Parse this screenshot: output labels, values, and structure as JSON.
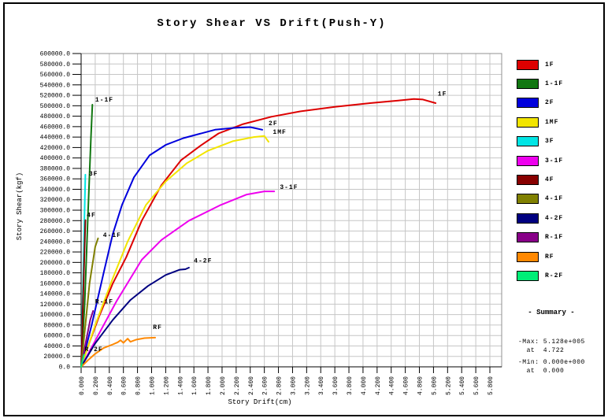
{
  "title": "Story Shear VS Drift(Push-Y)",
  "colors": {
    "grid": "#c6c6c6",
    "frame": "#909090",
    "axis": "#000000",
    "text": "#000000",
    "background": "#ffffff",
    "border": "#000000"
  },
  "summary": {
    "title": "- Summary -",
    "max_line": "-Max: 5.128e+005",
    "max_at_line": "  at  4.722",
    "min_line": "-Min: 0.000e+000",
    "min_at_line": "  at  0.000"
  },
  "chart_data": {
    "type": "line",
    "title": "Story Shear VS Drift(Push-Y)",
    "xlabel": "Story Drift(cm)",
    "ylabel": "Story Shear(kgf)",
    "xlim": [
      0,
      5.8
    ],
    "ylim": [
      0,
      600000
    ],
    "x_tick_step": 0.2,
    "y_tick_step": 20000,
    "grid": true,
    "legend_position": "right",
    "max_point": {
      "value": 512800,
      "at": 4.722
    },
    "min_point": {
      "value": 0,
      "at": 0
    },
    "series": [
      {
        "name": "1F",
        "color": "#dd0000",
        "label_at": [
          5.06,
          519000
        ],
        "points": [
          [
            0,
            0
          ],
          [
            0.1,
            40000
          ],
          [
            0.25,
            95000
          ],
          [
            0.45,
            160000
          ],
          [
            0.64,
            210000
          ],
          [
            0.86,
            280000
          ],
          [
            1.14,
            348000
          ],
          [
            1.42,
            396000
          ],
          [
            1.7,
            424000
          ],
          [
            1.95,
            447000
          ],
          [
            2.3,
            465000
          ],
          [
            2.7,
            479000
          ],
          [
            3.1,
            489000
          ],
          [
            3.6,
            498000
          ],
          [
            4.1,
            505000
          ],
          [
            4.5,
            510000
          ],
          [
            4.722,
            512800
          ],
          [
            4.85,
            512000
          ],
          [
            5.03,
            505000
          ]
        ]
      },
      {
        "name": "1-1F",
        "color": "#117711",
        "label_at": [
          0.2,
          508000
        ],
        "points": [
          [
            0,
            0
          ],
          [
            0.05,
            120000
          ],
          [
            0.1,
            300000
          ],
          [
            0.14,
            440000
          ],
          [
            0.16,
            502000
          ]
        ]
      },
      {
        "name": "2F",
        "color": "#0000dd",
        "label_at": [
          2.66,
          463000
        ],
        "points": [
          [
            0,
            0
          ],
          [
            0.15,
            80000
          ],
          [
            0.32,
            180000
          ],
          [
            0.45,
            255000
          ],
          [
            0.58,
            310000
          ],
          [
            0.75,
            363000
          ],
          [
            0.97,
            405000
          ],
          [
            1.2,
            425000
          ],
          [
            1.45,
            438000
          ],
          [
            1.9,
            454000
          ],
          [
            2.2,
            458000
          ],
          [
            2.4,
            459000
          ],
          [
            2.57,
            454000
          ]
        ]
      },
      {
        "name": "1MF",
        "color": "#f2e500",
        "label_at": [
          2.72,
          446000
        ],
        "points": [
          [
            0,
            0
          ],
          [
            0.2,
            80000
          ],
          [
            0.45,
            170000
          ],
          [
            0.66,
            240000
          ],
          [
            0.92,
            310000
          ],
          [
            1.2,
            355000
          ],
          [
            1.5,
            390000
          ],
          [
            1.8,
            414000
          ],
          [
            2.15,
            432000
          ],
          [
            2.45,
            440000
          ],
          [
            2.6,
            442000
          ],
          [
            2.66,
            431000
          ]
        ]
      },
      {
        "name": "3F",
        "color": "#00e5e5",
        "label_at": [
          0.11,
          366000
        ],
        "points": [
          [
            0,
            0
          ],
          [
            0.03,
            180000
          ],
          [
            0.06,
            368000
          ]
        ]
      },
      {
        "name": "3-1F",
        "color": "#ee00ee",
        "label_at": [
          2.82,
          341000
        ],
        "points": [
          [
            0,
            0
          ],
          [
            0.2,
            50000
          ],
          [
            0.5,
            125000
          ],
          [
            0.86,
            205000
          ],
          [
            1.14,
            243000
          ],
          [
            1.53,
            280000
          ],
          [
            1.98,
            310000
          ],
          [
            2.35,
            330000
          ],
          [
            2.6,
            336000
          ],
          [
            2.74,
            336000
          ]
        ]
      },
      {
        "name": "4F",
        "color": "#880000",
        "label_at": [
          0.08,
          287000
        ],
        "points": [
          [
            0,
            0
          ],
          [
            0.03,
            140000
          ],
          [
            0.06,
            281000
          ]
        ]
      },
      {
        "name": "4-1F",
        "color": "#808000",
        "label_at": [
          0.31,
          249000
        ],
        "points": [
          [
            0,
            0
          ],
          [
            0.06,
            80000
          ],
          [
            0.12,
            160000
          ],
          [
            0.2,
            230000
          ],
          [
            0.24,
            246000
          ]
        ]
      },
      {
        "name": "4-2F",
        "color": "#000080",
        "label_at": [
          1.6,
          200000
        ],
        "points": [
          [
            0,
            0
          ],
          [
            0.2,
            45000
          ],
          [
            0.45,
            90000
          ],
          [
            0.7,
            128000
          ],
          [
            0.95,
            155000
          ],
          [
            1.2,
            176000
          ],
          [
            1.4,
            186000
          ],
          [
            1.48,
            187000
          ],
          [
            1.53,
            190000
          ]
        ]
      },
      {
        "name": "R-1F",
        "color": "#880088",
        "label_at": [
          0.2,
          121000
        ],
        "points": [
          [
            0,
            0
          ],
          [
            0.07,
            50000
          ],
          [
            0.13,
            90000
          ],
          [
            0.17,
            107000
          ]
        ]
      },
      {
        "name": "RF",
        "color": "#ff8800",
        "label_at": [
          1.02,
          72000
        ],
        "points": [
          [
            0,
            0
          ],
          [
            0.1,
            13000
          ],
          [
            0.2,
            25000
          ],
          [
            0.32,
            36000
          ],
          [
            0.45,
            43000
          ],
          [
            0.52,
            47000
          ],
          [
            0.56,
            51000
          ],
          [
            0.6,
            46000
          ],
          [
            0.66,
            54000
          ],
          [
            0.7,
            48000
          ],
          [
            0.78,
            52000
          ],
          [
            0.9,
            55000
          ],
          [
            1.05,
            56000
          ]
        ]
      },
      {
        "name": "R-2F",
        "color": "#00ee77",
        "label_at": [
          0.05,
          30000
        ],
        "points": [
          [
            0,
            0
          ],
          [
            0.02,
            12000
          ],
          [
            0.04,
            23000
          ]
        ]
      }
    ]
  }
}
